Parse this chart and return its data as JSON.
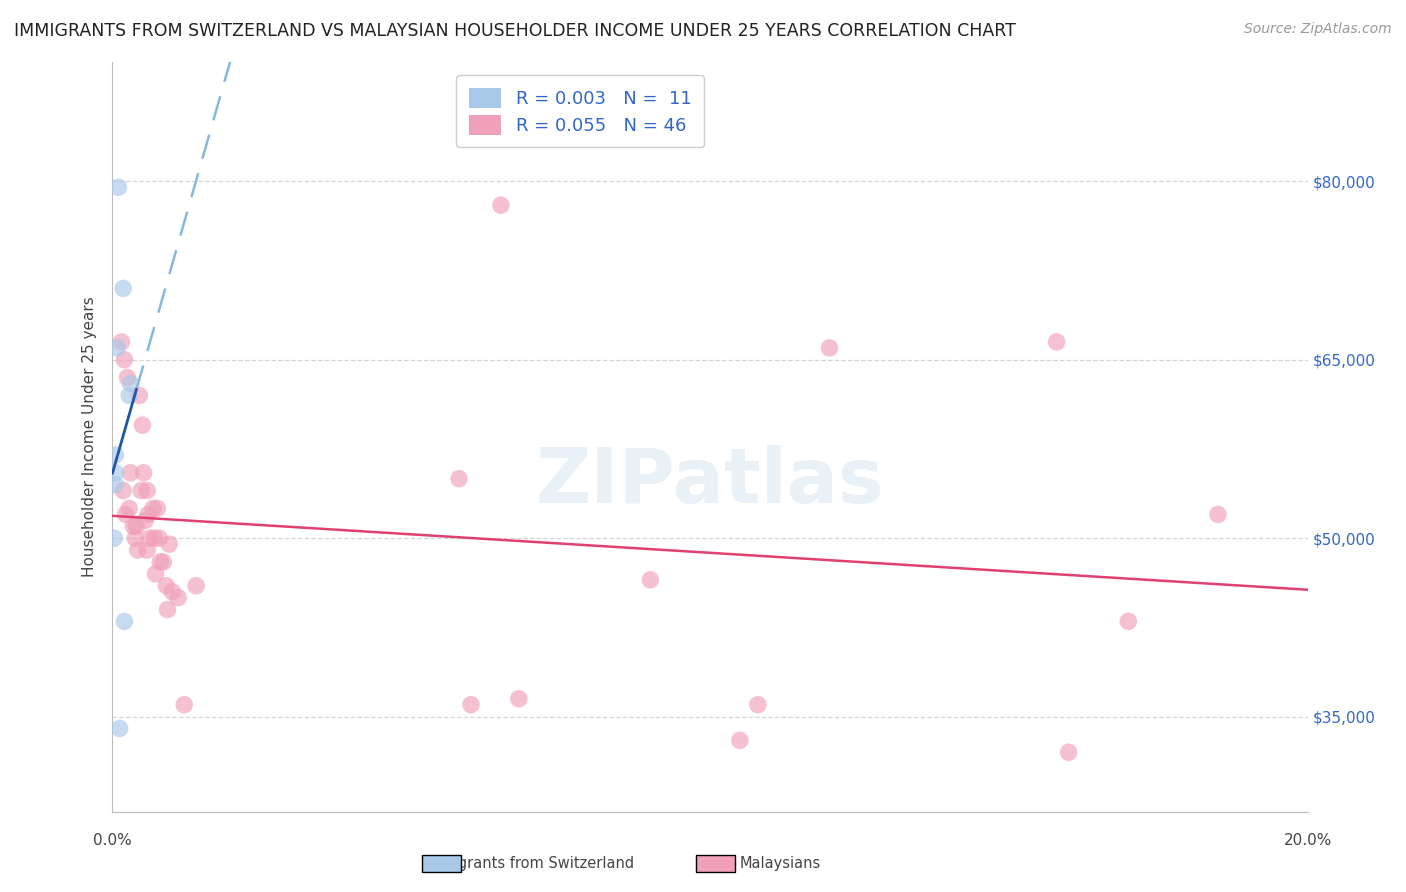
{
  "title": "IMMIGRANTS FROM SWITZERLAND VS MALAYSIAN HOUSEHOLDER INCOME UNDER 25 YEARS CORRELATION CHART",
  "source": "Source: ZipAtlas.com",
  "ylabel": "Householder Income Under 25 years",
  "xlim": [
    0.0,
    0.2
  ],
  "ylim": [
    27000,
    90000
  ],
  "yticks": [
    35000,
    50000,
    65000,
    80000
  ],
  "ytick_labels": [
    "$35,000",
    "$50,000",
    "$65,000",
    "$80,000"
  ],
  "background_color": "#ffffff",
  "plot_bg_color": "#ffffff",
  "grid_color": "#cccccc",
  "swiss_color": "#a8c8e8",
  "malay_color": "#f0a0b8",
  "swiss_line_color": "#2255aa",
  "malay_line_color": "#e04070",
  "legend_R_swiss": "R = 0.003",
  "legend_N_swiss": "N =  11",
  "legend_R_malay": "R = 0.055",
  "legend_N_malay": "N = 46",
  "swiss_x": [
    0.001,
    0.0018,
    0.0008,
    0.003,
    0.0028,
    0.0005,
    0.0005,
    0.0005,
    0.0003,
    0.002,
    0.0012
  ],
  "swiss_y": [
    79500,
    71000,
    66000,
    63000,
    62000,
    57000,
    55500,
    54500,
    50000,
    43000,
    34000
  ],
  "malay_x": [
    0.065,
    0.0015,
    0.002,
    0.0018,
    0.0022,
    0.0025,
    0.003,
    0.0028,
    0.0035,
    0.004,
    0.0038,
    0.0042,
    0.0045,
    0.005,
    0.0052,
    0.0048,
    0.0055,
    0.0058,
    0.006,
    0.0062,
    0.0058,
    0.0068,
    0.007,
    0.0072,
    0.0075,
    0.0078,
    0.008,
    0.0085,
    0.009,
    0.0092,
    0.0095,
    0.01,
    0.011,
    0.012,
    0.014,
    0.058,
    0.06,
    0.068,
    0.09,
    0.105,
    0.108,
    0.12,
    0.158,
    0.17,
    0.185,
    0.16
  ],
  "malay_y": [
    78000,
    66500,
    65000,
    54000,
    52000,
    63500,
    55500,
    52500,
    51000,
    51000,
    50000,
    49000,
    62000,
    59500,
    55500,
    54000,
    51500,
    54000,
    52000,
    50000,
    49000,
    52500,
    50000,
    47000,
    52500,
    50000,
    48000,
    48000,
    46000,
    44000,
    49500,
    45500,
    45000,
    36000,
    46000,
    55000,
    36000,
    36500,
    46500,
    33000,
    36000,
    66000,
    66500,
    43000,
    52000,
    32000
  ],
  "marker_size": 160,
  "marker_alpha": 0.65,
  "watermark": "ZIPatlas",
  "watermark_color": "#c0d4e8",
  "watermark_alpha": 0.35,
  "title_fontsize": 12.5,
  "source_fontsize": 10,
  "axis_label_fontsize": 11,
  "tick_fontsize": 11,
  "legend_fontsize": 13
}
